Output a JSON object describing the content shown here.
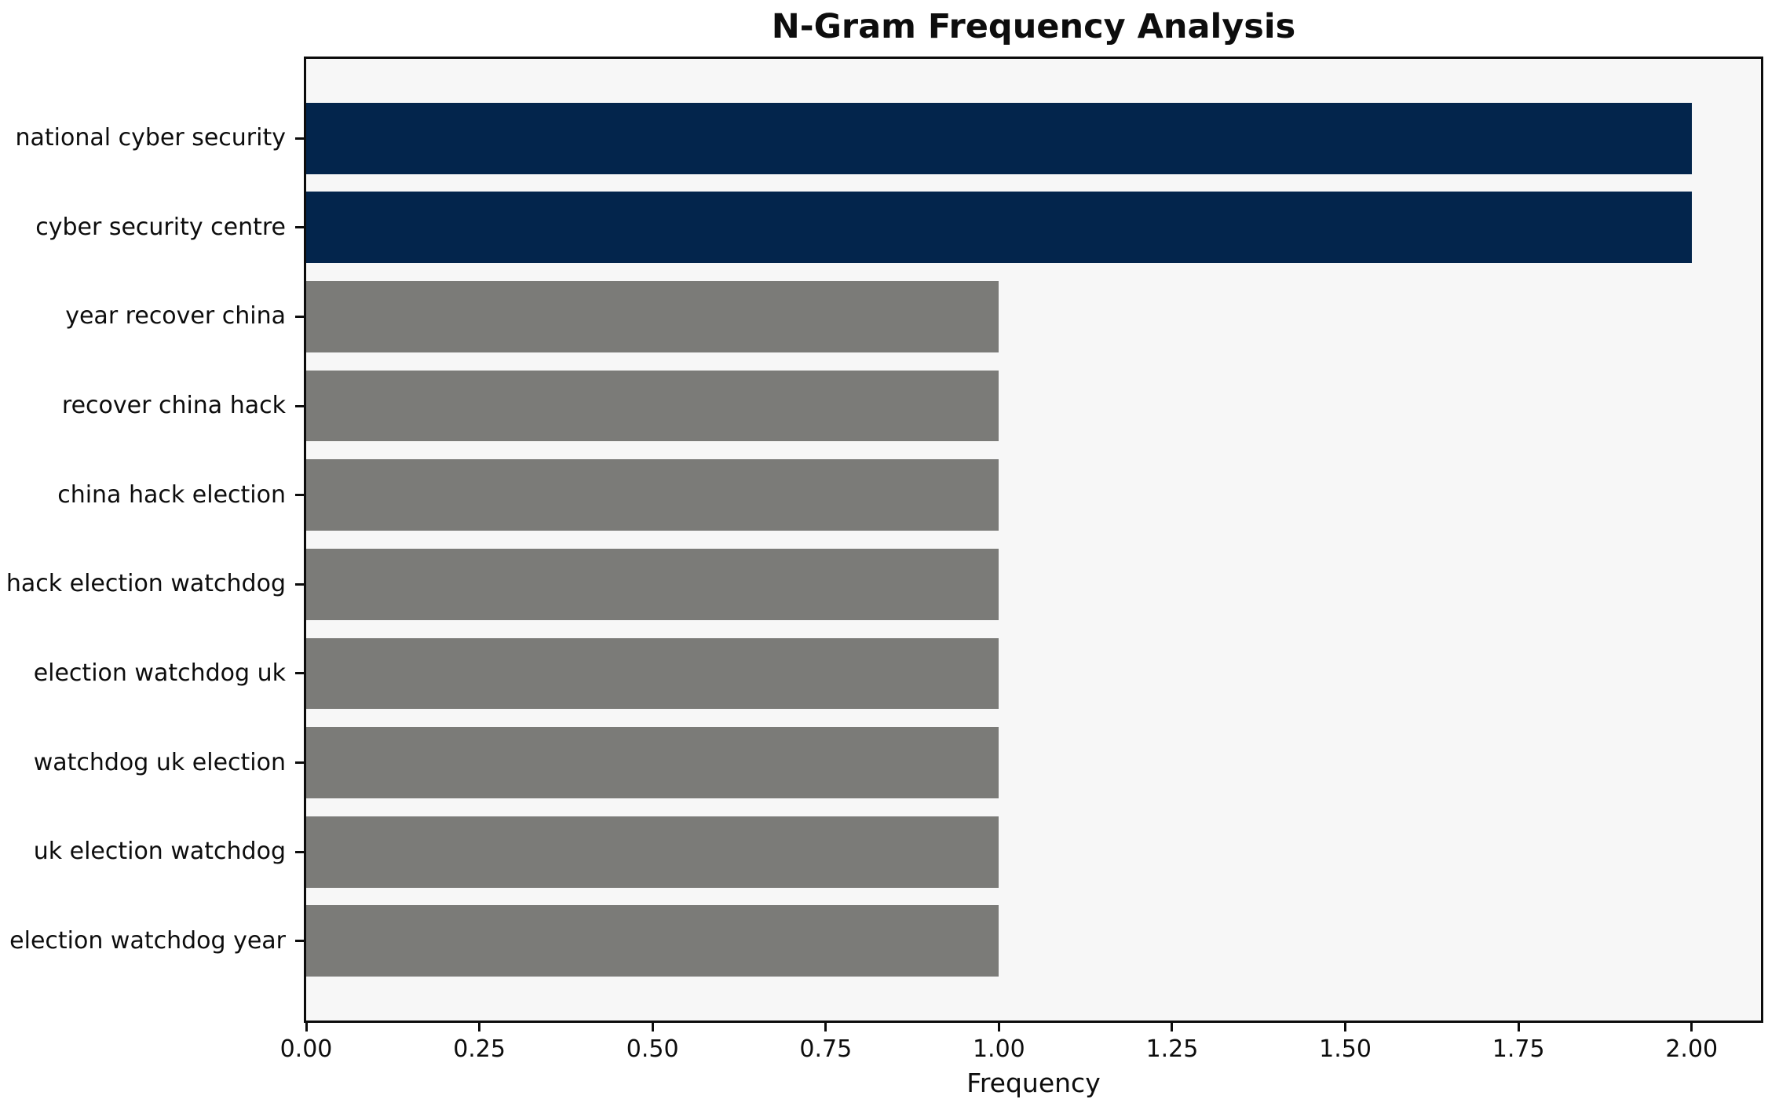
{
  "chart_data": {
    "type": "bar",
    "orientation": "horizontal",
    "title": "N-Gram Frequency Analysis",
    "xlabel": "Frequency",
    "ylabel": "",
    "categories": [
      "national cyber security",
      "cyber security centre",
      "year recover china",
      "recover china hack",
      "china hack election",
      "hack election watchdog",
      "election watchdog uk",
      "watchdog uk election",
      "uk election watchdog",
      "election watchdog year"
    ],
    "values": [
      2,
      2,
      1,
      1,
      1,
      1,
      1,
      1,
      1,
      1
    ],
    "xticks": [
      "0.00",
      "0.25",
      "0.50",
      "0.75",
      "1.00",
      "1.25",
      "1.50",
      "1.75",
      "2.00"
    ],
    "xtick_values": [
      0,
      0.25,
      0.5,
      0.75,
      1.0,
      1.25,
      1.5,
      1.75,
      2.0
    ],
    "xlim": [
      0,
      2.1
    ],
    "ylim": [
      -0.89,
      9.89
    ],
    "bar_height_units": 0.8,
    "grid": false,
    "legend": null,
    "colors": {
      "highlight": "#03254c",
      "default": "#7b7b78",
      "plot_background": "#f7f7f7",
      "figure_background": "#ffffff",
      "spine": "#0c0c0c",
      "text": "#0d0d0d"
    },
    "bar_colors": [
      "highlight",
      "highlight",
      "default",
      "default",
      "default",
      "default",
      "default",
      "default",
      "default",
      "default"
    ]
  }
}
